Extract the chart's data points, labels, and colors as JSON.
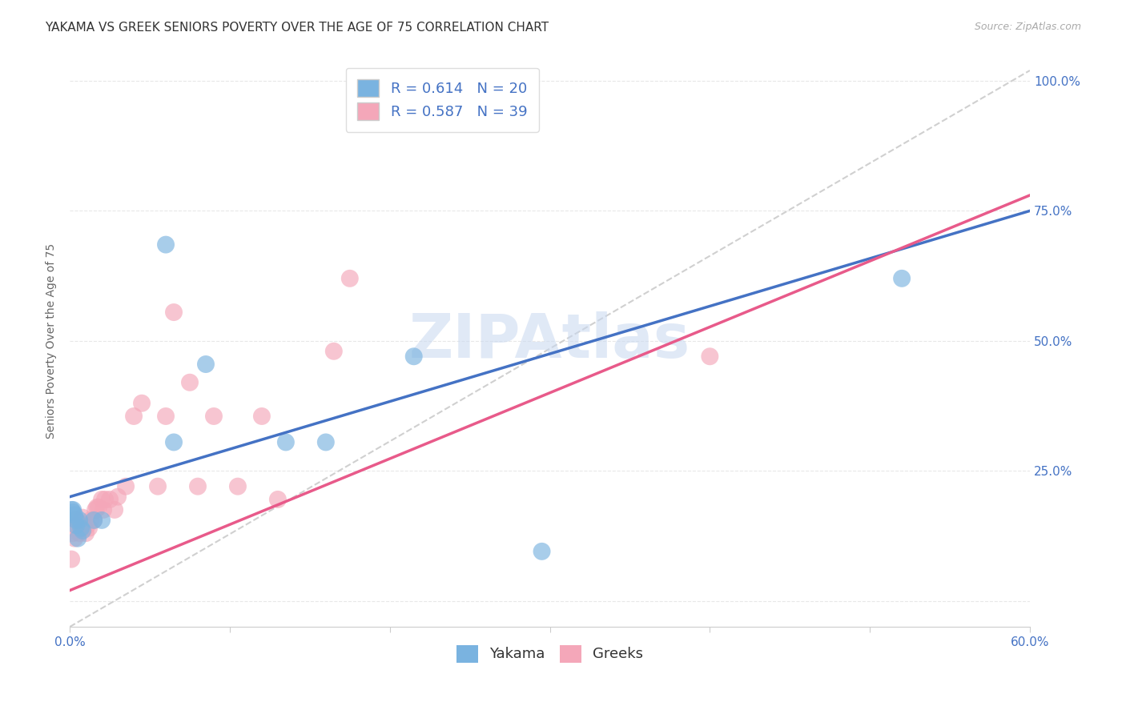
{
  "title": "YAKAMA VS GREEK SENIORS POVERTY OVER THE AGE OF 75 CORRELATION CHART",
  "source": "Source: ZipAtlas.com",
  "ylabel_label": "Seniors Poverty Over the Age of 75",
  "xlim": [
    0.0,
    0.6
  ],
  "ylim": [
    -0.05,
    1.05
  ],
  "yakama_x": [
    0.001,
    0.002,
    0.002,
    0.003,
    0.004,
    0.004,
    0.005,
    0.006,
    0.007,
    0.008,
    0.015,
    0.02,
    0.06,
    0.065,
    0.085,
    0.135,
    0.16,
    0.215,
    0.295,
    0.52
  ],
  "yakama_y": [
    0.175,
    0.175,
    0.17,
    0.165,
    0.155,
    0.145,
    0.12,
    0.155,
    0.14,
    0.135,
    0.155,
    0.155,
    0.685,
    0.305,
    0.455,
    0.305,
    0.305,
    0.47,
    0.095,
    0.62
  ],
  "greeks_x": [
    0.001,
    0.002,
    0.003,
    0.004,
    0.005,
    0.006,
    0.006,
    0.007,
    0.008,
    0.009,
    0.01,
    0.011,
    0.012,
    0.013,
    0.015,
    0.016,
    0.017,
    0.018,
    0.02,
    0.021,
    0.022,
    0.025,
    0.028,
    0.03,
    0.035,
    0.04,
    0.045,
    0.055,
    0.06,
    0.065,
    0.075,
    0.08,
    0.09,
    0.105,
    0.12,
    0.13,
    0.165,
    0.175,
    0.4
  ],
  "greeks_y": [
    0.08,
    0.13,
    0.12,
    0.155,
    0.145,
    0.13,
    0.15,
    0.145,
    0.16,
    0.14,
    0.13,
    0.145,
    0.14,
    0.155,
    0.155,
    0.175,
    0.18,
    0.18,
    0.195,
    0.175,
    0.195,
    0.195,
    0.175,
    0.2,
    0.22,
    0.355,
    0.38,
    0.22,
    0.355,
    0.555,
    0.42,
    0.22,
    0.355,
    0.22,
    0.355,
    0.195,
    0.48,
    0.62,
    0.47
  ],
  "yakama_color": "#7ab3e0",
  "greeks_color": "#f4a7b9",
  "yakama_line_color": "#4472c4",
  "greeks_line_color": "#e85a8a",
  "ref_line_color": "#d0d0d0",
  "watermark": "ZIPAtlas",
  "watermark_color": "#c8d8f0",
  "grid_color": "#e8e8e8",
  "title_fontsize": 11,
  "axis_label_fontsize": 10,
  "tick_fontsize": 11,
  "legend_fontsize": 13,
  "yakama_line": [
    0.0,
    0.2,
    0.6,
    0.75
  ],
  "greeks_line": [
    0.0,
    0.02,
    0.6,
    0.78
  ]
}
